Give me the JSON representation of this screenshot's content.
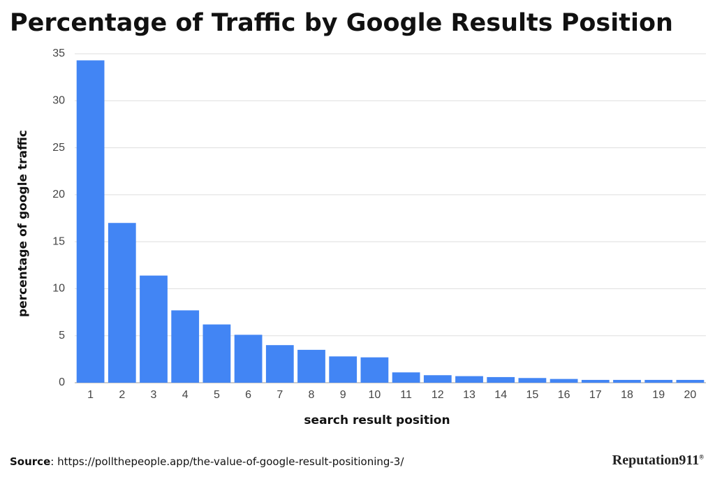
{
  "chart_data": {
    "type": "bar",
    "title": "Percentage of Traffic by Google Results Position",
    "x_label": "search result position",
    "y_label": "percentage of google traffic",
    "categories": [
      "1",
      "2",
      "3",
      "4",
      "5",
      "6",
      "7",
      "8",
      "9",
      "10",
      "11",
      "12",
      "13",
      "14",
      "15",
      "16",
      "17",
      "18",
      "19",
      "20"
    ],
    "values": [
      34.3,
      17.0,
      11.4,
      7.7,
      6.2,
      5.1,
      4.0,
      3.5,
      2.8,
      2.7,
      1.1,
      0.8,
      0.7,
      0.6,
      0.5,
      0.4,
      0.3,
      0.3,
      0.3,
      0.3
    ],
    "color": "#4285f4",
    "ylim": [
      0,
      35
    ],
    "yticks": [
      0,
      5,
      10,
      15,
      20,
      25,
      30,
      35
    ],
    "grid": true
  },
  "footer": {
    "source_label": "Source",
    "source_text": ": https://pollthepeople.app/the-value-of-google-result-positioning-3/",
    "logo": "Reputation911",
    "logo_mark": "®"
  }
}
